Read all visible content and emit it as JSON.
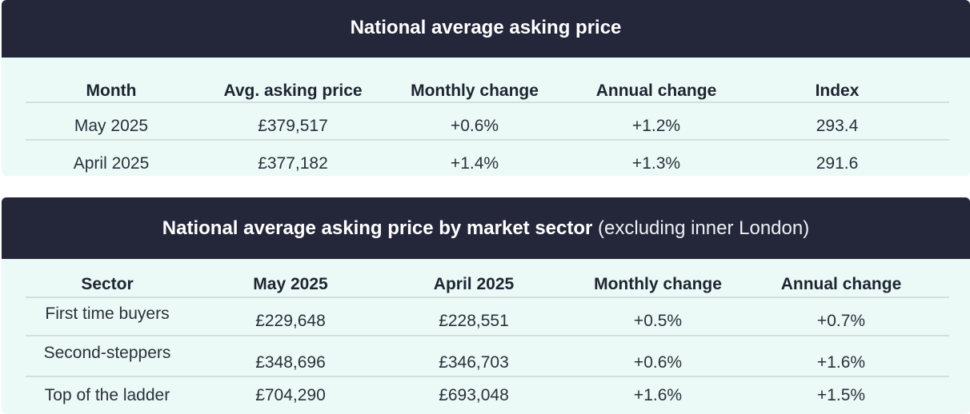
{
  "table1": {
    "title": "National average asking price",
    "headers": [
      "Month",
      "Avg. asking price",
      "Monthly change",
      "Annual change",
      "Index"
    ],
    "rows": [
      [
        "May 2025",
        "£379,517",
        "+0.6%",
        "+1.2%",
        "293.4"
      ],
      [
        "April 2025",
        "£377,182",
        "+1.4%",
        "+1.3%",
        "291.6"
      ]
    ]
  },
  "table2": {
    "title": "National average asking price by market sector",
    "subtitle": "(excluding inner London)",
    "headers": [
      "Sector",
      "May 2025",
      "April 2025",
      "Monthly change",
      "Annual change"
    ],
    "rows": [
      [
        "First time buyers",
        "£229,648",
        "£228,551",
        "+0.5%",
        "+0.7%"
      ],
      [
        "Second-steppers",
        "£348,696",
        "£346,703",
        "+0.6%",
        "+1.6%"
      ],
      [
        "Top of the ladder",
        "£704,290",
        "£693,048",
        "+1.6%",
        "+1.5%"
      ]
    ]
  },
  "colors": {
    "header_bg": "#24273a",
    "panel_bg": "#ebfaf6",
    "text": "#1f2433"
  }
}
